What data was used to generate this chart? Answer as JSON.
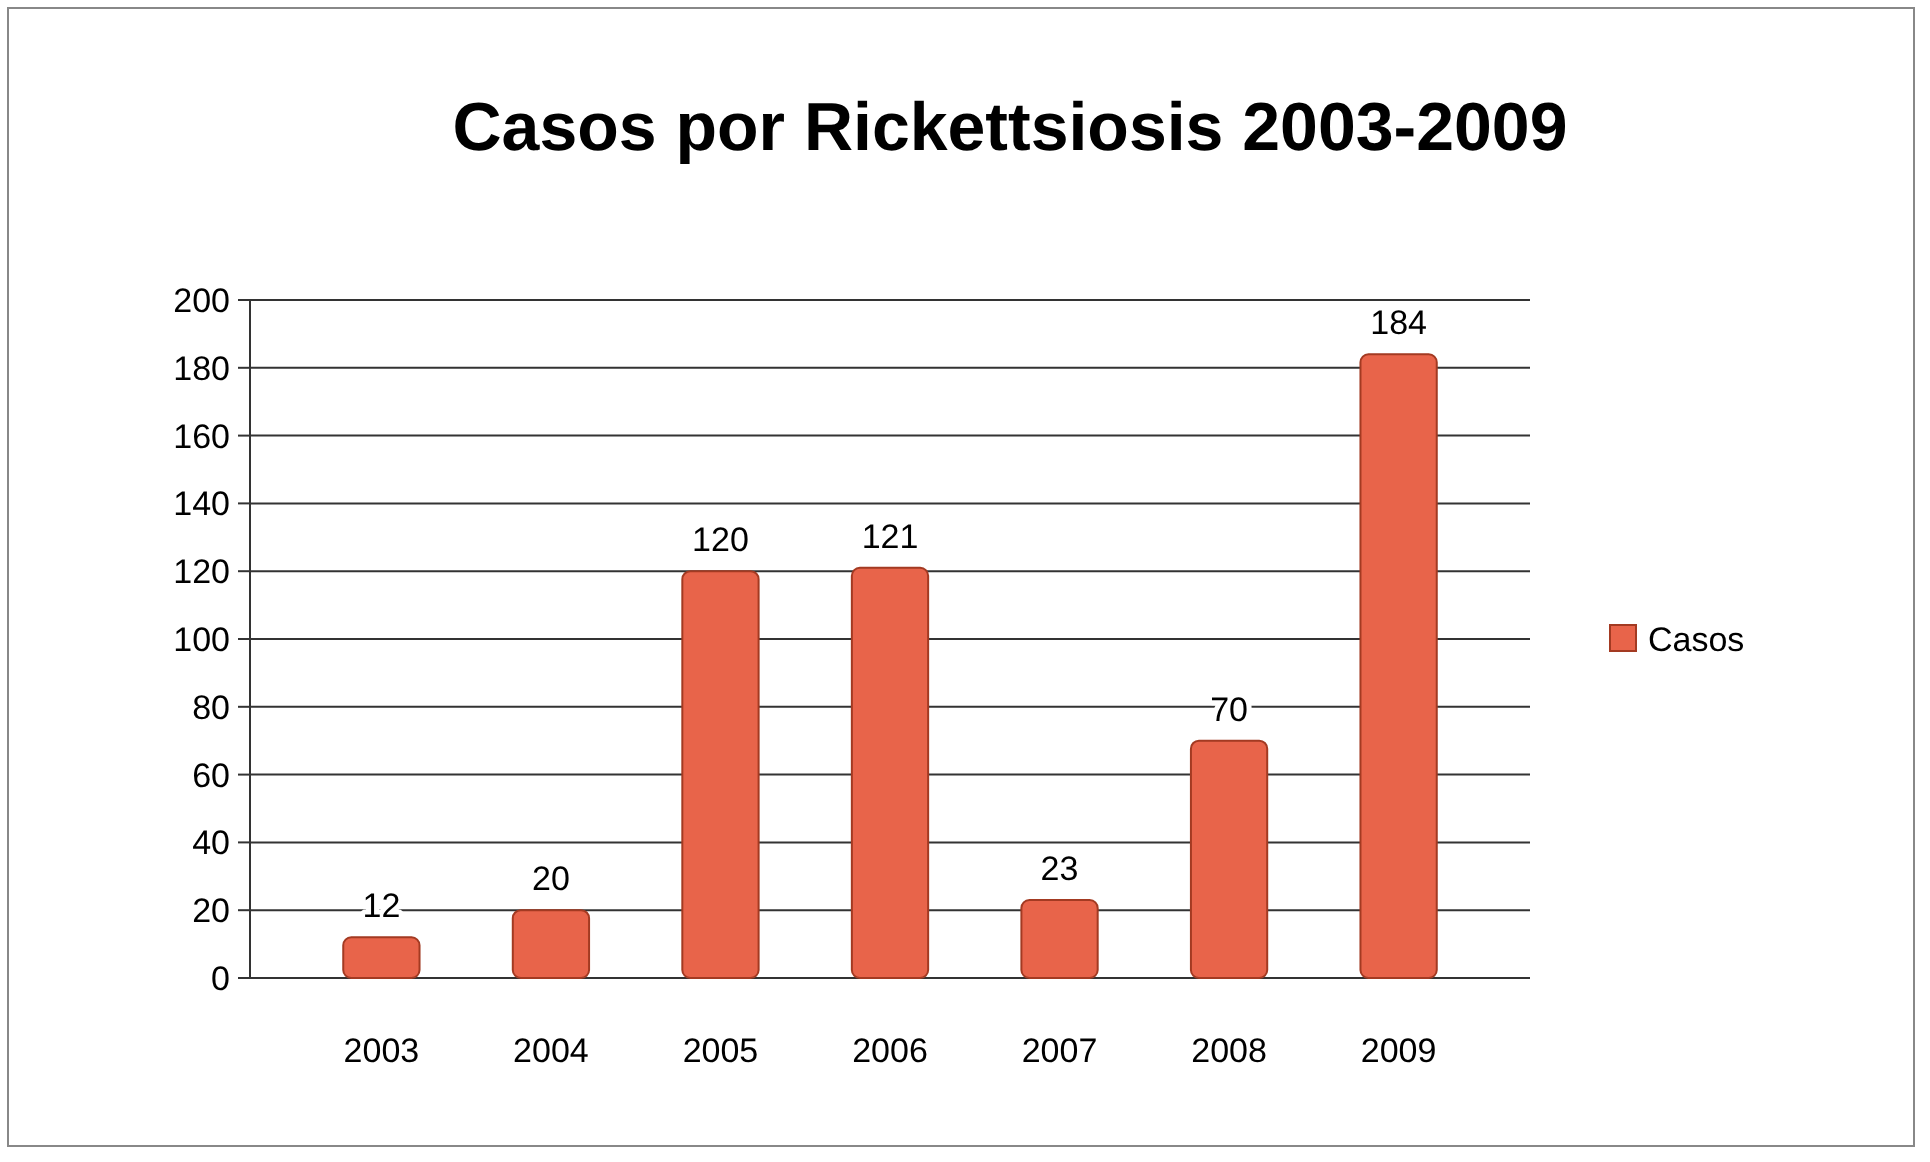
{
  "chart_data": {
    "type": "bar",
    "title": "Casos por Rickettsiosis 2003-2009",
    "categories": [
      "2003",
      "2004",
      "2005",
      "2006",
      "2007",
      "2008",
      "2009"
    ],
    "series": [
      {
        "name": "Casos",
        "color": "#e8644a",
        "values": [
          12,
          20,
          120,
          121,
          23,
          70,
          184
        ]
      }
    ],
    "ylim": [
      0,
      200
    ],
    "yticks": [
      0,
      20,
      40,
      60,
      80,
      100,
      120,
      140,
      160,
      180,
      200
    ],
    "grid": "y",
    "legend": "right",
    "data_labels": true
  }
}
